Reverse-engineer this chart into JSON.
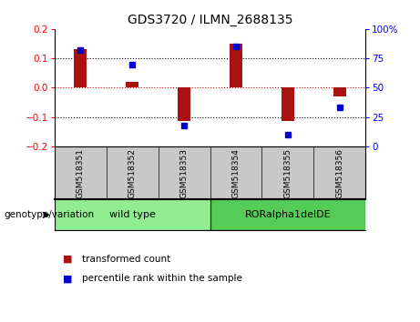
{
  "title": "GDS3720 / ILMN_2688135",
  "samples": [
    "GSM518351",
    "GSM518352",
    "GSM518353",
    "GSM518354",
    "GSM518355",
    "GSM518356"
  ],
  "bar_values": [
    0.13,
    0.02,
    -0.115,
    0.15,
    -0.115,
    -0.03
  ],
  "percentile_values": [
    82,
    70,
    18,
    85,
    10,
    33
  ],
  "ylim_left": [
    -0.2,
    0.2
  ],
  "ylim_right": [
    0,
    100
  ],
  "yticks_left": [
    -0.2,
    -0.1,
    0,
    0.1,
    0.2
  ],
  "yticks_right": [
    0,
    25,
    50,
    75,
    100
  ],
  "bar_color": "#aa1111",
  "point_color": "#0000cc",
  "hline_color": "#cc0000",
  "dotted_color": "#000000",
  "groups": [
    {
      "label": "wild type",
      "start": 0,
      "end": 2,
      "color": "#90ee90"
    },
    {
      "label": "RORalpha1delDE",
      "start": 3,
      "end": 5,
      "color": "#55cc55"
    }
  ],
  "group_label": "genotype/variation",
  "legend_bar_label": "transformed count",
  "legend_point_label": "percentile rank within the sample",
  "sample_box_color": "#c8c8c8",
  "background_color": "#ffffff",
  "bar_width": 0.25
}
